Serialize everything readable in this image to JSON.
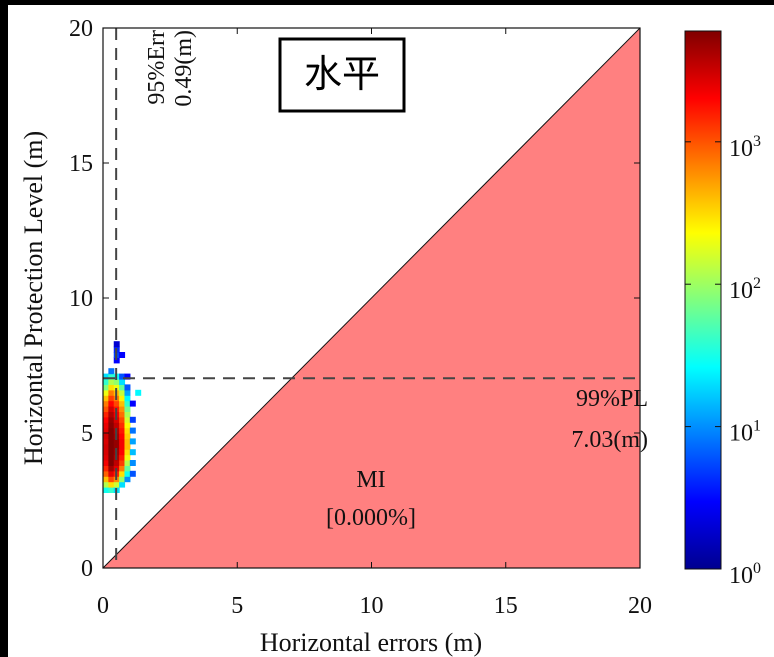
{
  "chart_data": {
    "type": "heatmap",
    "title_box": "水平",
    "xlabel": "Horizontal errors (m)",
    "ylabel": "Horizontal Protection Level (m)",
    "xlim": [
      0,
      20
    ],
    "ylim": [
      0,
      20
    ],
    "xticks": [
      "0",
      "5",
      "10",
      "15",
      "20"
    ],
    "yticks": [
      "0",
      "5",
      "10",
      "15",
      "20"
    ],
    "colorbar": {
      "scale": "log",
      "colormap": "jet",
      "range": [
        1,
        6000
      ],
      "ticks": [
        {
          "value": 1,
          "base": "10",
          "exp": "0"
        },
        {
          "value": 10,
          "base": "10",
          "exp": "1"
        },
        {
          "value": 100,
          "base": "10",
          "exp": "2"
        },
        {
          "value": 1000,
          "base": "10",
          "exp": "3"
        }
      ]
    },
    "mi_region": {
      "color": "#ff8080",
      "label": "MI",
      "value": "[0.000%]"
    },
    "err95": {
      "x": 0.49,
      "label": "95%Err",
      "value": "0.49(m)"
    },
    "pl99": {
      "y": 7.03,
      "label": "99%PL",
      "value": "7.03(m)"
    },
    "bin_size": 0.2,
    "cells": [
      [
        0.0,
        2.8,
        30
      ],
      [
        0.0,
        3.0,
        120
      ],
      [
        0.0,
        3.2,
        400
      ],
      [
        0.0,
        3.4,
        900
      ],
      [
        0.0,
        3.6,
        1500
      ],
      [
        0.0,
        3.8,
        2200
      ],
      [
        0.0,
        4.0,
        2600
      ],
      [
        0.0,
        4.2,
        2800
      ],
      [
        0.0,
        4.4,
        3000
      ],
      [
        0.0,
        4.6,
        2800
      ],
      [
        0.0,
        4.8,
        3000
      ],
      [
        0.0,
        5.0,
        2600
      ],
      [
        0.0,
        5.2,
        2400
      ],
      [
        0.0,
        5.4,
        2000
      ],
      [
        0.0,
        5.6,
        1500
      ],
      [
        0.0,
        5.8,
        1000
      ],
      [
        0.0,
        6.0,
        700
      ],
      [
        0.0,
        6.2,
        400
      ],
      [
        0.0,
        6.4,
        200
      ],
      [
        0.0,
        6.6,
        80
      ],
      [
        0.0,
        6.8,
        40
      ],
      [
        0.0,
        7.0,
        20
      ],
      [
        0.2,
        2.8,
        40
      ],
      [
        0.2,
        3.0,
        300
      ],
      [
        0.2,
        3.2,
        1100
      ],
      [
        0.2,
        3.4,
        2600
      ],
      [
        0.2,
        3.6,
        4500
      ],
      [
        0.2,
        3.8,
        6000
      ],
      [
        0.2,
        4.0,
        6000
      ],
      [
        0.2,
        4.2,
        6000
      ],
      [
        0.2,
        4.4,
        6000
      ],
      [
        0.2,
        4.6,
        6000
      ],
      [
        0.2,
        4.8,
        6000
      ],
      [
        0.2,
        5.0,
        6000
      ],
      [
        0.2,
        5.2,
        5500
      ],
      [
        0.2,
        5.4,
        5000
      ],
      [
        0.2,
        5.6,
        4000
      ],
      [
        0.2,
        5.8,
        3000
      ],
      [
        0.2,
        6.0,
        2000
      ],
      [
        0.2,
        6.2,
        1200
      ],
      [
        0.2,
        6.4,
        700
      ],
      [
        0.2,
        6.6,
        300
      ],
      [
        0.2,
        6.8,
        120
      ],
      [
        0.2,
        7.0,
        40
      ],
      [
        0.2,
        7.2,
        8
      ],
      [
        0.4,
        2.8,
        20
      ],
      [
        0.4,
        3.0,
        150
      ],
      [
        0.4,
        3.2,
        600
      ],
      [
        0.4,
        3.4,
        1500
      ],
      [
        0.4,
        3.6,
        2600
      ],
      [
        0.4,
        3.8,
        3500
      ],
      [
        0.4,
        4.0,
        4000
      ],
      [
        0.4,
        4.2,
        4500
      ],
      [
        0.4,
        4.4,
        5000
      ],
      [
        0.4,
        4.6,
        5000
      ],
      [
        0.4,
        4.8,
        4500
      ],
      [
        0.4,
        5.0,
        4000
      ],
      [
        0.4,
        5.2,
        3500
      ],
      [
        0.4,
        5.4,
        2800
      ],
      [
        0.4,
        5.6,
        2200
      ],
      [
        0.4,
        5.8,
        1700
      ],
      [
        0.4,
        6.0,
        1100
      ],
      [
        0.4,
        6.2,
        700
      ],
      [
        0.4,
        6.4,
        400
      ],
      [
        0.4,
        6.6,
        200
      ],
      [
        0.4,
        6.8,
        90
      ],
      [
        0.4,
        7.0,
        30
      ],
      [
        0.4,
        7.6,
        3
      ],
      [
        0.4,
        7.8,
        5
      ],
      [
        0.4,
        8.0,
        4
      ],
      [
        0.4,
        8.2,
        2
      ],
      [
        0.6,
        3.0,
        20
      ],
      [
        0.6,
        3.2,
        90
      ],
      [
        0.6,
        3.4,
        300
      ],
      [
        0.6,
        3.6,
        700
      ],
      [
        0.6,
        3.8,
        1200
      ],
      [
        0.6,
        4.0,
        1600
      ],
      [
        0.6,
        4.2,
        2000
      ],
      [
        0.6,
        4.4,
        2200
      ],
      [
        0.6,
        4.6,
        2200
      ],
      [
        0.6,
        4.8,
        2000
      ],
      [
        0.6,
        5.0,
        1700
      ],
      [
        0.6,
        5.2,
        1400
      ],
      [
        0.6,
        5.4,
        1100
      ],
      [
        0.6,
        5.6,
        800
      ],
      [
        0.6,
        5.8,
        600
      ],
      [
        0.6,
        6.0,
        400
      ],
      [
        0.6,
        6.2,
        250
      ],
      [
        0.6,
        6.4,
        140
      ],
      [
        0.6,
        6.6,
        60
      ],
      [
        0.6,
        6.8,
        20
      ],
      [
        0.6,
        7.0,
        6
      ],
      [
        0.6,
        7.8,
        3
      ],
      [
        0.8,
        3.2,
        10
      ],
      [
        0.8,
        3.4,
        30
      ],
      [
        0.8,
        3.6,
        60
      ],
      [
        0.8,
        3.8,
        120
      ],
      [
        0.8,
        4.0,
        200
      ],
      [
        0.8,
        4.2,
        300
      ],
      [
        0.8,
        4.4,
        400
      ],
      [
        0.8,
        4.6,
        400
      ],
      [
        0.8,
        4.8,
        350
      ],
      [
        0.8,
        5.0,
        300
      ],
      [
        0.8,
        5.2,
        220
      ],
      [
        0.8,
        5.4,
        160
      ],
      [
        0.8,
        5.6,
        110
      ],
      [
        0.8,
        5.8,
        70
      ],
      [
        0.8,
        6.0,
        40
      ],
      [
        0.8,
        6.2,
        25
      ],
      [
        0.8,
        6.4,
        12
      ],
      [
        0.8,
        6.6,
        6
      ],
      [
        0.8,
        7.0,
        3
      ],
      [
        1.0,
        3.4,
        6
      ],
      [
        1.0,
        3.8,
        10
      ],
      [
        1.0,
        4.2,
        15
      ],
      [
        1.0,
        4.6,
        12
      ],
      [
        1.0,
        5.0,
        8
      ],
      [
        1.0,
        5.4,
        5
      ],
      [
        1.0,
        6.0,
        3
      ],
      [
        1.2,
        6.4,
        25
      ]
    ]
  }
}
